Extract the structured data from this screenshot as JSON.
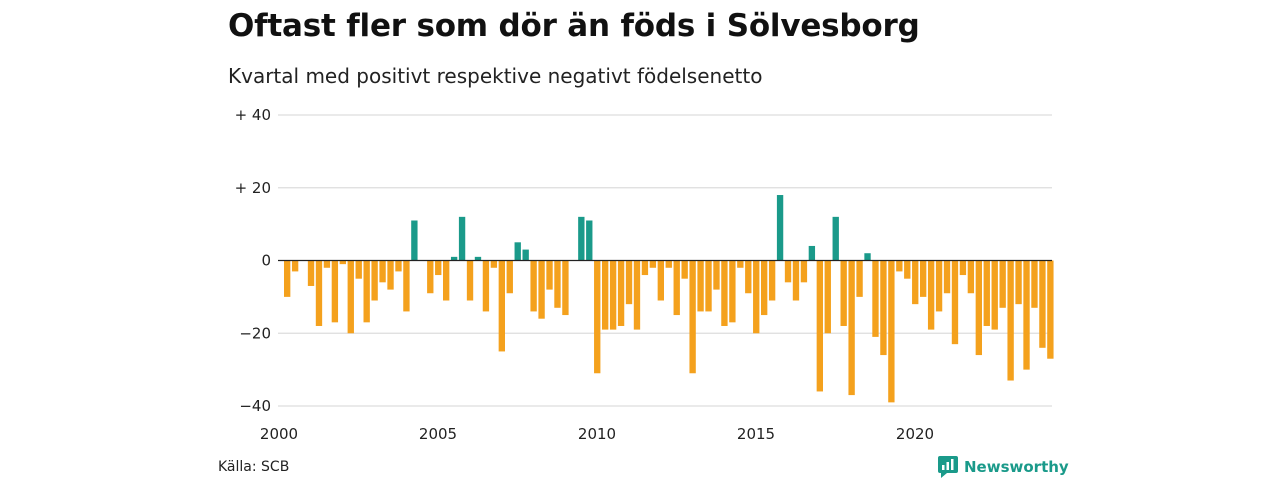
{
  "title": "Oftast fler som dör än föds i Sölvesborg",
  "subtitle": "Kvartal med positivt respektive negativt födelsenetto",
  "source": "Källa: SCB",
  "brand": {
    "name": "Newsworthy",
    "icon": "newsworthy-logo-icon"
  },
  "colors": {
    "positive": "#1a9a8a",
    "negative": "#f4a11d",
    "grid": "#dddddd",
    "baseline": "#222222"
  },
  "chart_data": {
    "type": "bar",
    "x_start_year": 2000,
    "periods_per_year": 4,
    "ylim": [
      -40,
      40
    ],
    "y_ticks": [
      40,
      20,
      0,
      -20,
      -40
    ],
    "y_tick_labels": [
      "+ 40",
      "+ 20",
      "0",
      "−20",
      "−40"
    ],
    "x_ticks": [
      2000,
      2005,
      2010,
      2015,
      2020
    ],
    "x_tick_labels": [
      "2000",
      "2005",
      "2010",
      "2015",
      "2020"
    ],
    "grid": true,
    "values": [
      -10,
      -3,
      0,
      -7,
      -18,
      -2,
      -17,
      -1,
      -20,
      -5,
      -17,
      -11,
      -6,
      -8,
      -3,
      -14,
      11,
      0,
      -9,
      -4,
      -11,
      1,
      12,
      -11,
      1,
      -14,
      -2,
      -25,
      -9,
      5,
      3,
      -14,
      -16,
      -8,
      -13,
      -15,
      0,
      12,
      11,
      -31,
      -19,
      -19,
      -18,
      -12,
      -19,
      -4,
      -2,
      -11,
      -2,
      -15,
      -5,
      -31,
      -14,
      -14,
      -8,
      -18,
      -17,
      -2,
      -9,
      -20,
      -15,
      -11,
      18,
      -6,
      -11,
      -6,
      4,
      -36,
      -20,
      12,
      -18,
      -37,
      -10,
      2,
      -21,
      -26,
      -39,
      -3,
      -5,
      -12,
      -10,
      -19,
      -14,
      -9,
      -23,
      -4,
      -9,
      -26,
      -18,
      -19,
      -13,
      -33,
      -12,
      -30,
      -13,
      -24,
      -27
    ]
  }
}
